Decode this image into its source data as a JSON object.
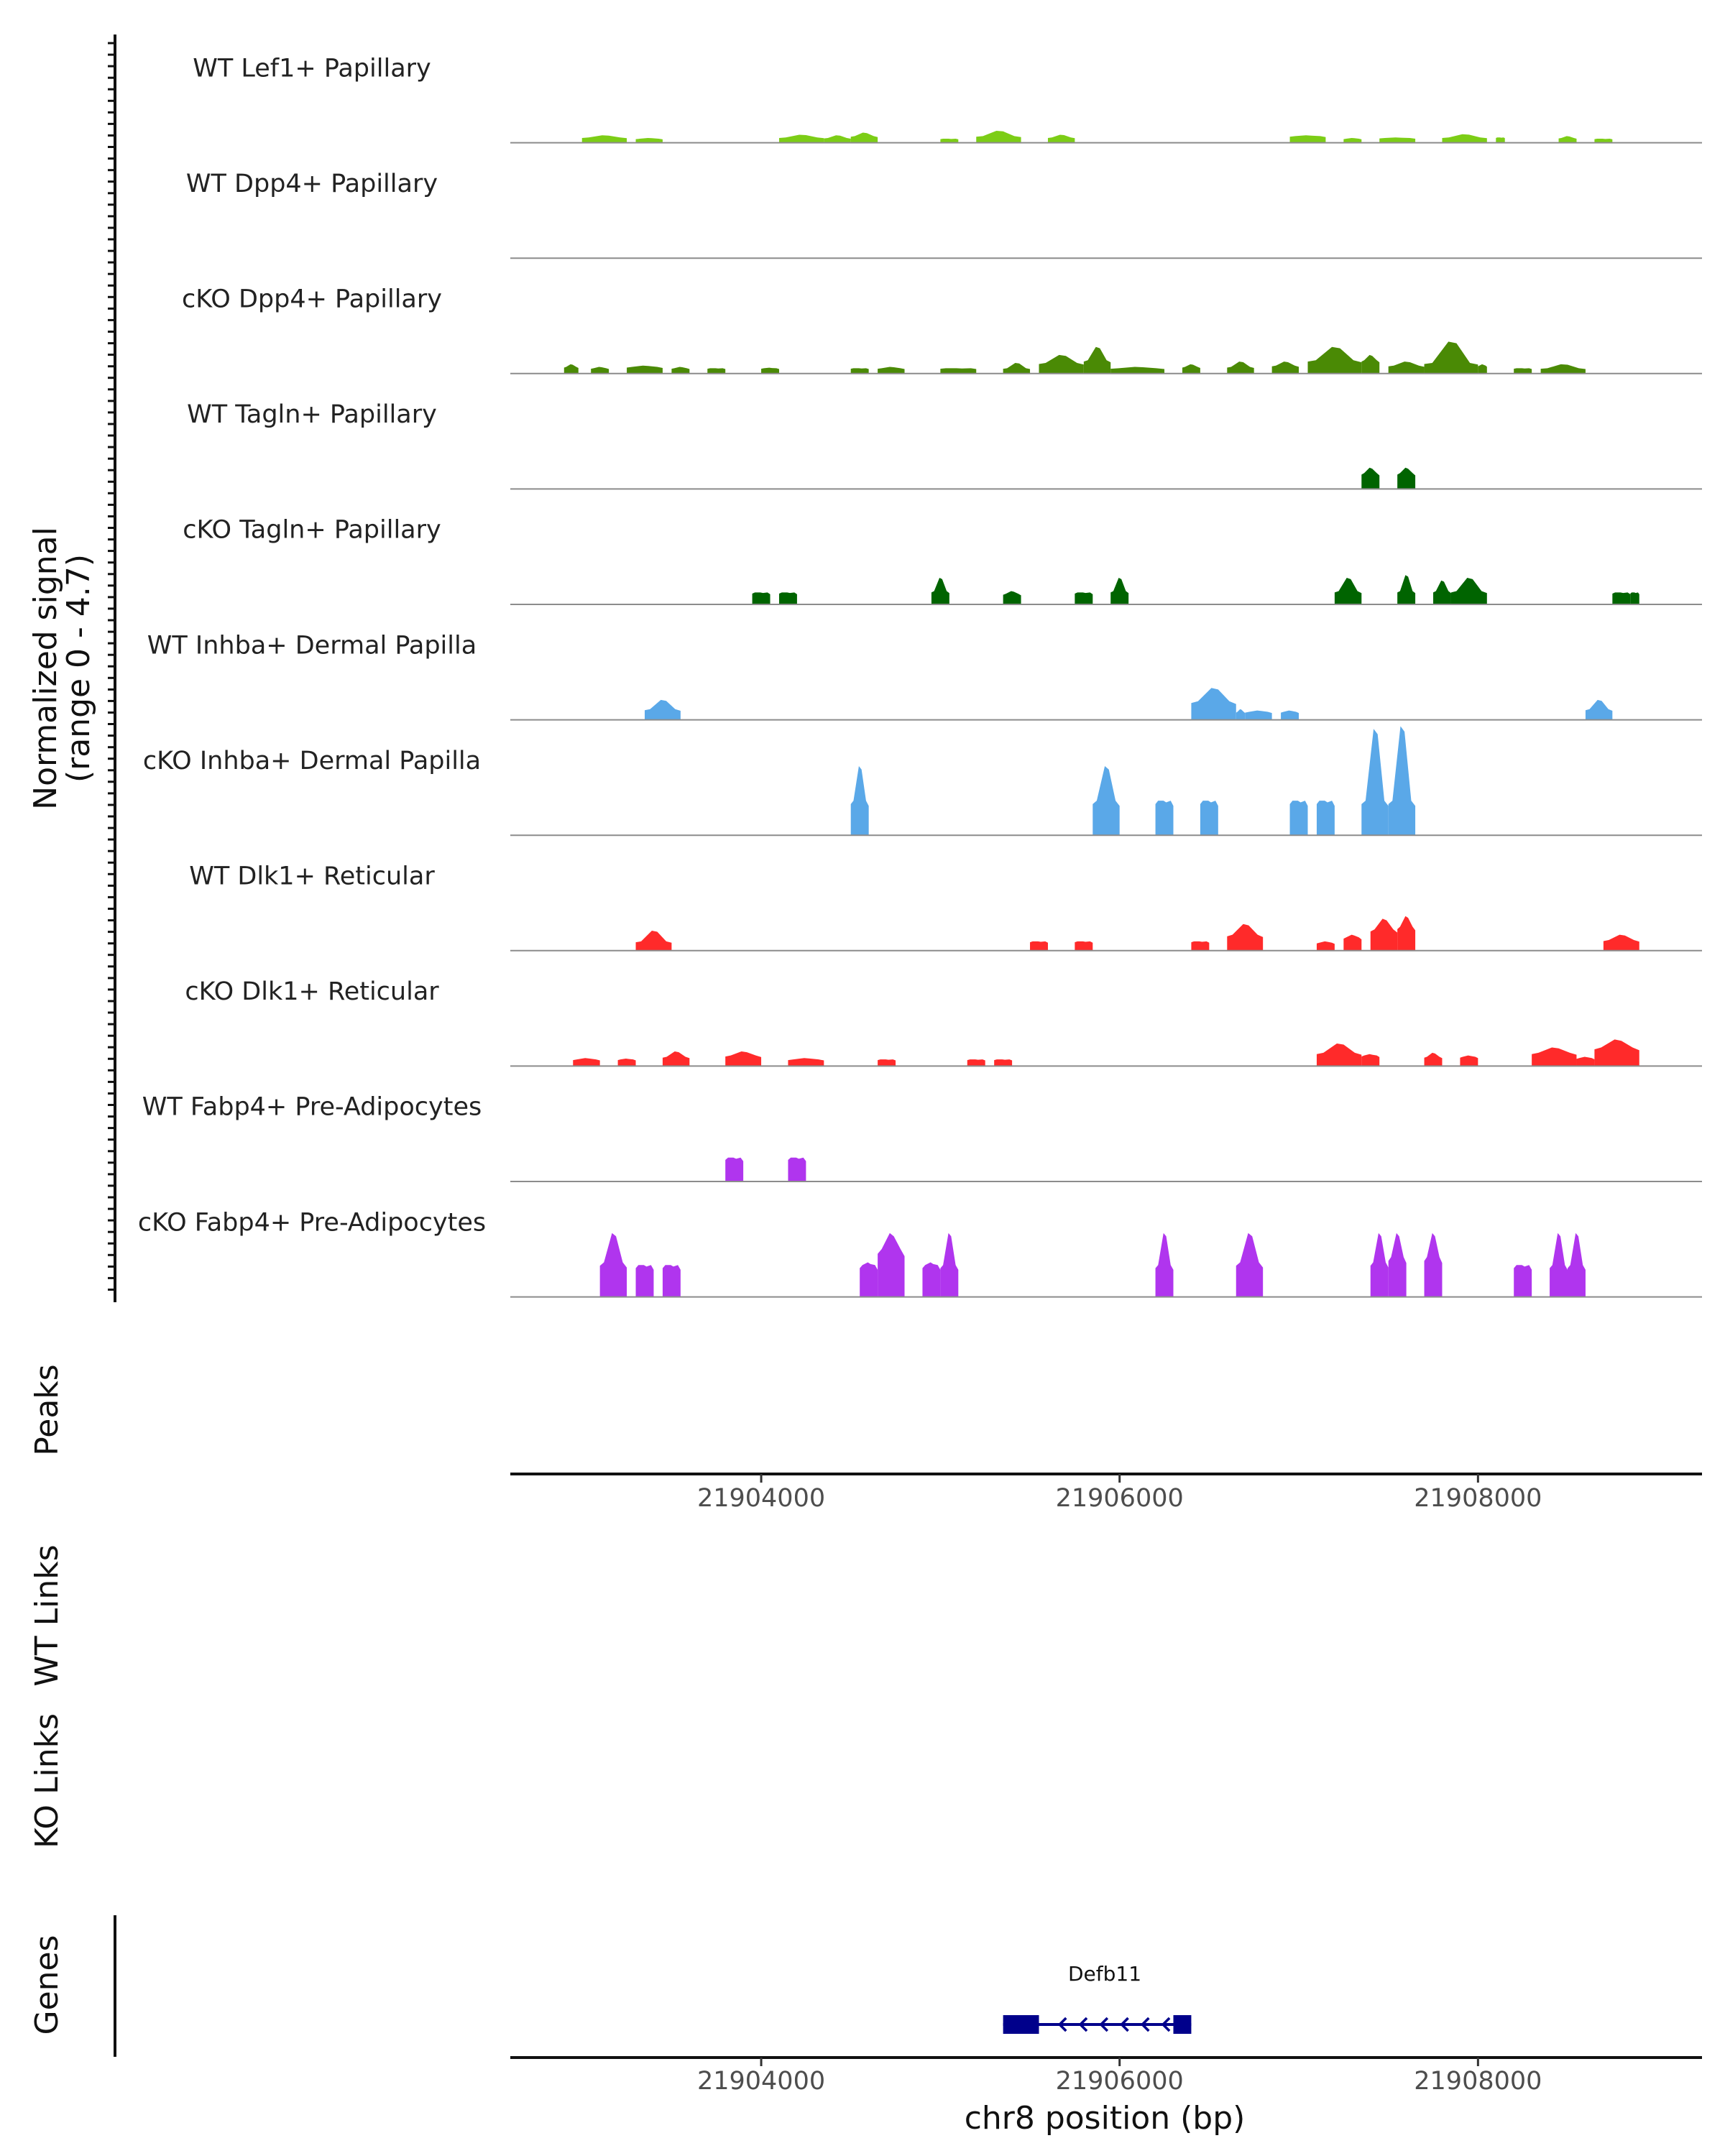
{
  "chart_data": {
    "type": "coverage",
    "y_title_line1": "Normalized signal",
    "y_title_line2": "(range 0 - 4.7)",
    "ylim": [
      0,
      4.7
    ],
    "xlim": [
      21902600,
      21909250
    ],
    "tracks": [
      {
        "label": "WT Lef1+ Papillary",
        "color": "#7ccd16",
        "segments": [
          [
            21903000,
            21903250,
            0.2,
            0.28
          ],
          [
            21903300,
            21903450,
            0.15,
            0.18
          ],
          [
            21904100,
            21904350,
            0.2,
            0.3
          ],
          [
            21904350,
            21904500,
            0.18,
            0.28
          ],
          [
            21904500,
            21904650,
            0.25,
            0.38
          ],
          [
            21905000,
            21905100,
            0.15,
            0.15
          ],
          [
            21905200,
            21905450,
            0.25,
            0.45
          ],
          [
            21905600,
            21905750,
            0.2,
            0.3
          ],
          [
            21906950,
            21907150,
            0.25,
            0.28
          ],
          [
            21907250,
            21907350,
            0.15,
            0.18
          ],
          [
            21907450,
            21907650,
            0.18,
            0.2
          ],
          [
            21907800,
            21908050,
            0.2,
            0.32
          ],
          [
            21908100,
            21908150,
            0.2,
            0.2
          ],
          [
            21908450,
            21908550,
            0.18,
            0.25
          ],
          [
            21908650,
            21908750,
            0.15,
            0.15
          ]
        ]
      },
      {
        "label": "WT Dpp4+ Papillary",
        "color": "#4c8a00",
        "segments": []
      },
      {
        "label": "cKO Dpp4+ Papillary",
        "color": "#4a8a05",
        "segments": [
          [
            21902900,
            21902980,
            0.25,
            0.35
          ],
          [
            21903050,
            21903150,
            0.2,
            0.25
          ],
          [
            21903250,
            21903450,
            0.25,
            0.3
          ],
          [
            21903500,
            21903600,
            0.2,
            0.25
          ],
          [
            21903700,
            21903800,
            0.2,
            0.2
          ],
          [
            21904000,
            21904100,
            0.2,
            0.22
          ],
          [
            21904500,
            21904600,
            0.2,
            0.2
          ],
          [
            21904650,
            21904800,
            0.2,
            0.25
          ],
          [
            21905000,
            21905200,
            0.2,
            0.2
          ],
          [
            21905350,
            21905500,
            0.2,
            0.4
          ],
          [
            21905550,
            21905800,
            0.4,
            0.7
          ],
          [
            21905800,
            21905950,
            0.5,
            1.0
          ],
          [
            21905950,
            21906250,
            0.2,
            0.25
          ],
          [
            21906350,
            21906450,
            0.25,
            0.35
          ],
          [
            21906600,
            21906750,
            0.25,
            0.45
          ],
          [
            21906850,
            21907000,
            0.3,
            0.45
          ],
          [
            21907050,
            21907350,
            0.5,
            1.0
          ],
          [
            21907350,
            21907450,
            0.5,
            0.7
          ],
          [
            21907500,
            21907700,
            0.3,
            0.45
          ],
          [
            21907700,
            21908000,
            0.4,
            1.2
          ],
          [
            21908000,
            21908050,
            0.3,
            0.35
          ],
          [
            21908200,
            21908300,
            0.2,
            0.2
          ],
          [
            21908350,
            21908600,
            0.2,
            0.35
          ]
        ]
      },
      {
        "label": "WT Tagln+ Papillary",
        "color": "#006400",
        "segments": [
          [
            21907350,
            21907450,
            0.6,
            0.8
          ],
          [
            21907550,
            21907650,
            0.6,
            0.8
          ]
        ]
      },
      {
        "label": "cKO Tagln+ Papillary",
        "color": "#006400",
        "segments": [
          [
            21903950,
            21904050,
            0.45,
            0.45
          ],
          [
            21904100,
            21904200,
            0.45,
            0.45
          ],
          [
            21904950,
            21905050,
            0.5,
            1.0
          ],
          [
            21905350,
            21905450,
            0.4,
            0.5
          ],
          [
            21905750,
            21905850,
            0.45,
            0.45
          ],
          [
            21905950,
            21906050,
            0.5,
            1.0
          ],
          [
            21907200,
            21907350,
            0.5,
            1.0
          ],
          [
            21907550,
            21907650,
            0.5,
            1.1
          ],
          [
            21907750,
            21907850,
            0.5,
            0.9
          ],
          [
            21907850,
            21908050,
            0.5,
            1.0
          ],
          [
            21908750,
            21908850,
            0.45,
            0.45
          ],
          [
            21908850,
            21908900,
            0.45,
            0.45
          ]
        ]
      },
      {
        "label": "WT Inhba+ Dermal Papilla",
        "color": "#5aa8e8",
        "segments": [
          [
            21903350,
            21903550,
            0.4,
            0.75
          ],
          [
            21906400,
            21906650,
            0.7,
            1.2
          ],
          [
            21906650,
            21906700,
            0.3,
            0.4
          ],
          [
            21906700,
            21906850,
            0.3,
            0.35
          ],
          [
            21906900,
            21907000,
            0.3,
            0.35
          ],
          [
            21908600,
            21908750,
            0.4,
            0.75
          ]
        ]
      },
      {
        "label": "cKO Inhba+ Dermal Papilla",
        "color": "#5aa8e8",
        "segments": [
          [
            21904500,
            21904600,
            1.3,
            2.6
          ],
          [
            21905850,
            21906000,
            1.3,
            2.6
          ],
          [
            21906200,
            21906300,
            1.3,
            1.3
          ],
          [
            21906450,
            21906550,
            1.3,
            1.3
          ],
          [
            21906950,
            21907050,
            1.3,
            1.3
          ],
          [
            21907100,
            21907200,
            1.3,
            1.3
          ],
          [
            21907350,
            21907500,
            1.3,
            4.0
          ],
          [
            21907500,
            21907650,
            1.3,
            4.1
          ]
        ]
      },
      {
        "label": "WT Dlk1+ Reticular",
        "color": "#ff2a2a",
        "segments": [
          [
            21903300,
            21903500,
            0.35,
            0.75
          ],
          [
            21905500,
            21905600,
            0.35,
            0.35
          ],
          [
            21905750,
            21905850,
            0.35,
            0.35
          ],
          [
            21906400,
            21906500,
            0.35,
            0.35
          ],
          [
            21906600,
            21906800,
            0.6,
            1.0
          ],
          [
            21907100,
            21907200,
            0.3,
            0.35
          ],
          [
            21907250,
            21907350,
            0.5,
            0.6
          ],
          [
            21907400,
            21907550,
            0.8,
            1.2
          ],
          [
            21907550,
            21907650,
            0.9,
            1.3
          ],
          [
            21908700,
            21908900,
            0.4,
            0.6
          ]
        ]
      },
      {
        "label": "cKO Dlk1+ Reticular",
        "color": "#ff2a2a",
        "segments": [
          [
            21902950,
            21903100,
            0.25,
            0.3
          ],
          [
            21903200,
            21903300,
            0.25,
            0.28
          ],
          [
            21903450,
            21903600,
            0.35,
            0.55
          ],
          [
            21903800,
            21904000,
            0.4,
            0.55
          ],
          [
            21904150,
            21904350,
            0.25,
            0.3
          ],
          [
            21904650,
            21904750,
            0.25,
            0.25
          ],
          [
            21905150,
            21905250,
            0.25,
            0.25
          ],
          [
            21905300,
            21905400,
            0.25,
            0.25
          ],
          [
            21907100,
            21907350,
            0.5,
            0.85
          ],
          [
            21907350,
            21907450,
            0.4,
            0.45
          ],
          [
            21907700,
            21907800,
            0.35,
            0.5
          ],
          [
            21907900,
            21908000,
            0.35,
            0.4
          ],
          [
            21908300,
            21908550,
            0.5,
            0.7
          ],
          [
            21908550,
            21908650,
            0.3,
            0.35
          ],
          [
            21908650,
            21908900,
            0.7,
            1.0
          ]
        ]
      },
      {
        "label": "WT Fabp4+ Pre-Adipocytes",
        "color": "#b035ee",
        "segments": [
          [
            21903800,
            21903900,
            0.9,
            0.9
          ],
          [
            21904150,
            21904250,
            0.9,
            0.9
          ]
        ]
      },
      {
        "label": "cKO Fabp4+ Pre-Adipocytes",
        "color": "#b035ee",
        "segments": [
          [
            21903100,
            21903250,
            1.3,
            2.4
          ],
          [
            21903300,
            21903400,
            1.2,
            1.2
          ],
          [
            21903450,
            21903550,
            1.2,
            1.2
          ],
          [
            21904550,
            21904650,
            1.2,
            1.3
          ],
          [
            21904650,
            21904800,
            1.8,
            2.4
          ],
          [
            21904900,
            21905000,
            1.2,
            1.3
          ],
          [
            21905000,
            21905100,
            1.2,
            2.4
          ],
          [
            21906200,
            21906300,
            1.2,
            2.4
          ],
          [
            21906650,
            21906800,
            1.3,
            2.4
          ],
          [
            21907400,
            21907500,
            1.3,
            2.4
          ],
          [
            21907500,
            21907600,
            1.5,
            2.4
          ],
          [
            21907700,
            21907800,
            1.5,
            2.4
          ],
          [
            21908200,
            21908300,
            1.2,
            1.2
          ],
          [
            21908400,
            21908500,
            1.2,
            2.4
          ],
          [
            21908500,
            21908600,
            1.2,
            2.4
          ]
        ]
      }
    ],
    "panel_labels": {
      "peaks": "Peaks",
      "wt_links": "WT Links",
      "ko_links": "KO Links",
      "genes": "Genes"
    },
    "x_ticks": [
      {
        "value": 21904000,
        "label": "21904000"
      },
      {
        "value": 21906000,
        "label": "21906000"
      },
      {
        "value": 21908000,
        "label": "21908000"
      }
    ],
    "xlabel": "chr8 position (bp)",
    "gene": {
      "name": "Defb11",
      "start": 21905350,
      "end": 21906400,
      "strand": "-",
      "exons": [
        [
          21905350,
          21905550
        ],
        [
          21906300,
          21906400
        ]
      ],
      "color": "#00008b"
    }
  }
}
